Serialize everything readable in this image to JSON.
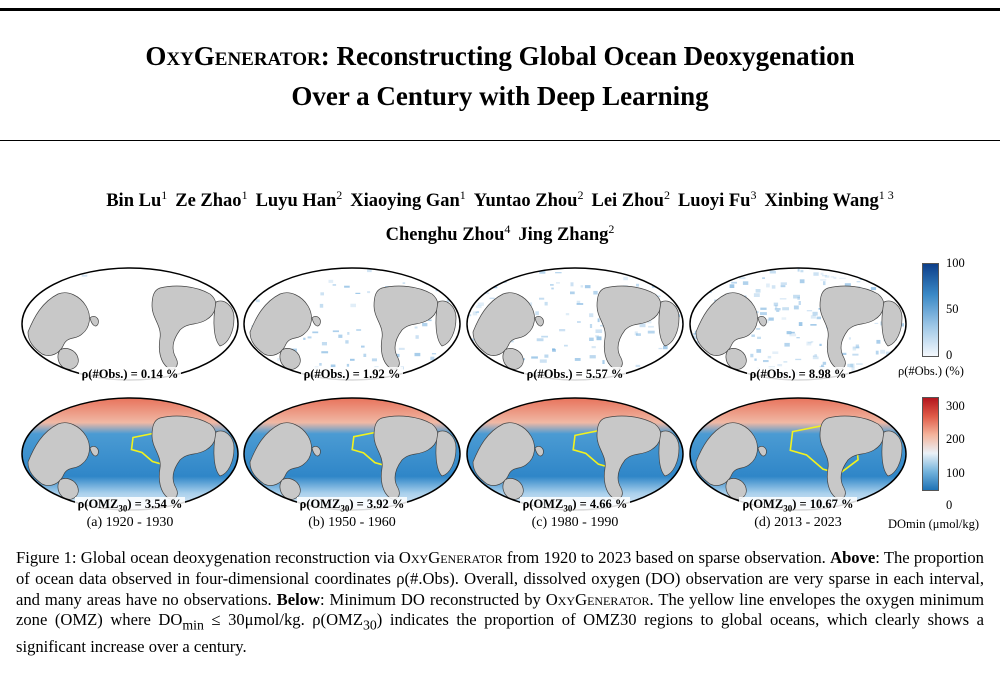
{
  "title": {
    "line1_sc": "OxyGenerator",
    "line1_rest": ": Reconstructing Global Ocean Deoxygenation",
    "line2": "Over a Century with Deep Learning"
  },
  "authors": [
    {
      "name": "Bin Lu",
      "aff": "1"
    },
    {
      "name": "Ze Zhao",
      "aff": "1"
    },
    {
      "name": "Luyu Han",
      "aff": "2"
    },
    {
      "name": "Xiaoying Gan",
      "aff": "1"
    },
    {
      "name": "Yuntao Zhou",
      "aff": "2"
    },
    {
      "name": "Lei Zhou",
      "aff": "2"
    },
    {
      "name": "Luoyi Fu",
      "aff": "3"
    },
    {
      "name": "Xinbing Wang",
      "aff": "1 3"
    },
    {
      "name": "Chenghu Zhou",
      "aff": "4"
    },
    {
      "name": "Jing Zhang",
      "aff": "2"
    }
  ],
  "figure": {
    "obs_label_prefix": "ρ(#Obs.) = ",
    "omz_label_prefix": "ρ(OMZ",
    "omz_sub": "30",
    "omz_label_mid": ") = ",
    "panels": [
      {
        "period": "(a) 1920 - 1930",
        "obs": "0.14 %",
        "omz": "3.54 %",
        "obs_level": 0.02,
        "omz_level": 0.25
      },
      {
        "period": "(b) 1950 - 1960",
        "obs": "1.92 %",
        "omz": "3.92 %",
        "obs_level": 0.3,
        "omz_level": 0.35
      },
      {
        "period": "(c) 1980 - 1990",
        "obs": "5.57 %",
        "omz": "4.66 %",
        "obs_level": 0.6,
        "omz_level": 0.5
      },
      {
        "period": "(d) 2013 - 2023",
        "obs": "8.98 %",
        "omz": "10.67 %",
        "obs_level": 0.9,
        "omz_level": 0.95
      }
    ],
    "cbar_obs": {
      "ticks": [
        "100",
        "50",
        "0"
      ],
      "title": "ρ(#Obs.) (%)"
    },
    "cbar_do": {
      "ticks": [
        "300",
        "200",
        "100",
        "0"
      ],
      "title": "DOmin (μmol/kg)"
    },
    "colors": {
      "land": "#c8c8c8",
      "yellow": "#f2f21e",
      "ocean_blue": "#2f86c8",
      "warm": "#e8735c"
    }
  },
  "caption": {
    "p1": "Figure 1: Global ocean deoxygenation reconstruction via ",
    "sc1": "OxyGenerator",
    "p2": " from 1920 to 2023 based on sparse observation. ",
    "above": "Above",
    "p3": ": The proportion of ocean data observed in four-dimensional coordinates ρ(#.Obs). Overall, dissolved oxygen (DO) observation are very sparse in each interval, and many areas have no observations. ",
    "below": "Below",
    "p4": ": Minimum DO reconstructed by ",
    "sc2": "OxyGenerator",
    "p5": ". The yellow line envelopes the oxygen minimum zone (OMZ) where DO",
    "min_sub": "min",
    "p6": " ≤ 30μmol/kg. ρ(OMZ",
    "sub30": "30",
    "p7": ") indicates the proportion of OMZ30 regions to global oceans, which clearly shows a significant increase over a century."
  }
}
